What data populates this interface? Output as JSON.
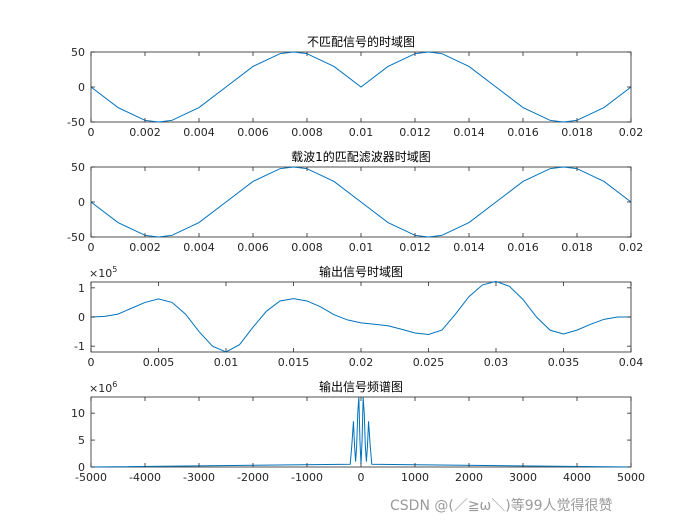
{
  "watermark": "CSDN @(／≧ω＼)等99人觉得很赞",
  "colors": {
    "line": "#0072BD",
    "axes": "#262626",
    "background": "#ffffff"
  },
  "chart_data": [
    {
      "type": "line",
      "title": "不匹配信号的时域图",
      "xlim": [
        0,
        0.02
      ],
      "ylim": [
        -50,
        50
      ],
      "xticks": [
        "0",
        "0.002",
        "0.004",
        "0.006",
        "0.008",
        "0.01",
        "0.012",
        "0.014",
        "0.016",
        "0.018",
        "0.02"
      ],
      "yticks": [
        "50",
        "0",
        "-50"
      ],
      "exponent": "",
      "series": [
        {
          "x": [
            0,
            0.001,
            0.002,
            0.0025,
            0.003,
            0.004,
            0.005,
            0.006,
            0.007,
            0.0075,
            0.008,
            0.009,
            0.01,
            0.011,
            0.012,
            0.0125,
            0.013,
            0.014,
            0.015,
            0.016,
            0.017,
            0.0175,
            0.018,
            0.019,
            0.02
          ],
          "y": [
            0,
            -29.4,
            -47.6,
            -50,
            -47.6,
            -29.4,
            0,
            29.4,
            47.6,
            50,
            47.6,
            29.4,
            0,
            29.4,
            47.6,
            50,
            47.6,
            29.4,
            0,
            -29.4,
            -47.6,
            -50,
            -47.6,
            -29.4,
            0
          ]
        }
      ]
    },
    {
      "type": "line",
      "title": "载波1的匹配滤波器时域图",
      "xlim": [
        0,
        0.02
      ],
      "ylim": [
        -50,
        50
      ],
      "xticks": [
        "0",
        "0.002",
        "0.004",
        "0.006",
        "0.008",
        "0.01",
        "0.012",
        "0.014",
        "0.016",
        "0.018",
        "0.02"
      ],
      "yticks": [
        "50",
        "0",
        "-50"
      ],
      "exponent": "",
      "series": [
        {
          "x": [
            0,
            0.001,
            0.002,
            0.0025,
            0.003,
            0.004,
            0.005,
            0.006,
            0.007,
            0.0075,
            0.008,
            0.009,
            0.01,
            0.011,
            0.012,
            0.0125,
            0.013,
            0.014,
            0.015,
            0.016,
            0.017,
            0.0175,
            0.018,
            0.019,
            0.02
          ],
          "y": [
            0,
            -29.4,
            -47.6,
            -50,
            -47.6,
            -29.4,
            0,
            29.4,
            47.6,
            50,
            47.6,
            29.4,
            0,
            -29.4,
            -47.6,
            -50,
            -47.6,
            -29.4,
            0,
            29.4,
            47.6,
            50,
            47.6,
            29.4,
            0
          ]
        }
      ]
    },
    {
      "type": "line",
      "title": "输出信号时域图",
      "xlim": [
        0,
        0.04
      ],
      "ylim": [
        -1.2,
        1.2
      ],
      "xticks": [
        "0",
        "0.005",
        "0.01",
        "0.015",
        "0.02",
        "0.025",
        "0.03",
        "0.035",
        "0.04"
      ],
      "yticks": [
        "1",
        "0",
        "-1"
      ],
      "exponent": "5",
      "series": [
        {
          "x": [
            0,
            0.001,
            0.002,
            0.003,
            0.004,
            0.005,
            0.006,
            0.007,
            0.008,
            0.009,
            0.01,
            0.011,
            0.012,
            0.013,
            0.014,
            0.015,
            0.016,
            0.017,
            0.018,
            0.019,
            0.02,
            0.021,
            0.022,
            0.023,
            0.024,
            0.025,
            0.026,
            0.027,
            0.028,
            0.029,
            0.03,
            0.031,
            0.032,
            0.033,
            0.034,
            0.035,
            0.036,
            0.037,
            0.038,
            0.039,
            0.04
          ],
          "y": [
            0,
            0.02,
            0.1,
            0.3,
            0.5,
            0.62,
            0.5,
            0.1,
            -0.5,
            -1.0,
            -1.2,
            -0.95,
            -0.35,
            0.2,
            0.55,
            0.63,
            0.55,
            0.35,
            0.08,
            -0.1,
            -0.2,
            -0.25,
            -0.3,
            -0.42,
            -0.55,
            -0.6,
            -0.45,
            0.1,
            0.7,
            1.1,
            1.22,
            1.05,
            0.6,
            0.0,
            -0.45,
            -0.58,
            -0.45,
            -0.25,
            -0.08,
            0.0,
            0
          ]
        }
      ]
    },
    {
      "type": "line",
      "title": "输出信号频谱图",
      "xlim": [
        -5000,
        5000
      ],
      "ylim": [
        0,
        13
      ],
      "xticks": [
        "-5000",
        "-4000",
        "-3000",
        "-2000",
        "-1000",
        "0",
        "1000",
        "2000",
        "3000",
        "4000",
        "5000"
      ],
      "yticks": [
        "10",
        "5",
        "0"
      ],
      "exponent": "6",
      "series": [
        {
          "x": [
            -5000,
            -200,
            -170,
            -140,
            -120,
            -100,
            -80,
            -60,
            -40,
            -20,
            0,
            20,
            40,
            60,
            80,
            100,
            120,
            140,
            170,
            200,
            5000
          ],
          "y": [
            0,
            0.5,
            4,
            8.5,
            4,
            1,
            4,
            10,
            13,
            5,
            0.5,
            5,
            13,
            10,
            4,
            1,
            4,
            8.5,
            4,
            0.5,
            0
          ]
        }
      ]
    }
  ]
}
